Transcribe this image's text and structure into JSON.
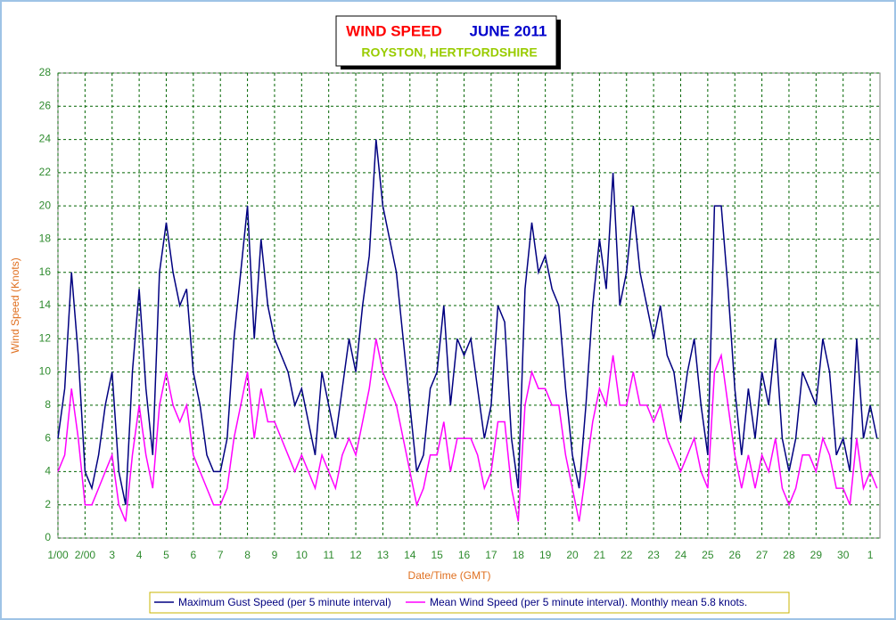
{
  "chart_data": {
    "type": "line",
    "title": "WIND SPEED",
    "title_date": "JUNE 2011",
    "subtitle": "ROYSTON, HERTFORDSHIRE",
    "x_label": "Date/Time (GMT)",
    "y_label": "Wind Speed (Knots)",
    "xlim": [
      1,
      31.36
    ],
    "ylim": [
      0,
      28
    ],
    "xticks": [
      {
        "value": 1,
        "label": "1/00"
      },
      {
        "value": 2,
        "label": "2/00"
      },
      3,
      4,
      5,
      6,
      7,
      8,
      9,
      10,
      11,
      12,
      13,
      14,
      15,
      16,
      17,
      18,
      19,
      20,
      21,
      22,
      23,
      24,
      25,
      26,
      27,
      28,
      29,
      30,
      {
        "value": 31,
        "label": "1"
      }
    ],
    "yticks": [
      0,
      2,
      4,
      6,
      8,
      10,
      12,
      14,
      16,
      18,
      20,
      22,
      24,
      26,
      28
    ],
    "grid": true,
    "x": [
      1,
      1.25,
      1.5,
      1.75,
      2,
      2.25,
      2.5,
      2.75,
      3,
      3.25,
      3.5,
      3.75,
      4,
      4.25,
      4.5,
      4.75,
      5,
      5.25,
      5.5,
      5.75,
      6,
      6.25,
      6.5,
      6.75,
      7,
      7.25,
      7.5,
      7.75,
      8,
      8.25,
      8.5,
      8.75,
      9,
      9.25,
      9.5,
      9.75,
      10,
      10.25,
      10.5,
      10.75,
      11,
      11.25,
      11.5,
      11.75,
      12,
      12.25,
      12.5,
      12.75,
      13,
      13.25,
      13.5,
      13.75,
      14,
      14.25,
      14.5,
      14.75,
      15,
      15.25,
      15.5,
      15.75,
      16,
      16.25,
      16.5,
      16.75,
      17,
      17.25,
      17.5,
      17.75,
      18,
      18.25,
      18.5,
      18.75,
      19,
      19.25,
      19.5,
      19.75,
      20,
      20.25,
      20.5,
      20.75,
      21,
      21.25,
      21.5,
      21.75,
      22,
      22.25,
      22.5,
      22.75,
      23,
      23.25,
      23.5,
      23.75,
      24,
      24.25,
      24.5,
      24.75,
      25,
      25.25,
      25.5,
      25.75,
      26,
      26.25,
      26.5,
      26.75,
      27,
      27.25,
      27.5,
      27.75,
      28,
      28.25,
      28.5,
      28.75,
      29,
      29.25,
      29.5,
      29.75,
      30,
      30.25,
      30.5,
      30.75,
      31,
      31.25
    ],
    "series": [
      {
        "name": "Maximum Gust Speed (per 5 minute interval)",
        "color": "#000080",
        "values": [
          6,
          9,
          16,
          11,
          4,
          3,
          5,
          8,
          10,
          4,
          2,
          10,
          15,
          9,
          5,
          16,
          19,
          16,
          14,
          15,
          10,
          8,
          5,
          4,
          4,
          6,
          12,
          16,
          20,
          12,
          18,
          14,
          12,
          11,
          10,
          8,
          9,
          7,
          5,
          10,
          8,
          6,
          9,
          12,
          10,
          14,
          17,
          24,
          20,
          18,
          16,
          12,
          8,
          4,
          5,
          9,
          10,
          14,
          8,
          12,
          11,
          12,
          9,
          6,
          8,
          14,
          13,
          6,
          3,
          15,
          19,
          16,
          17,
          15,
          14,
          9,
          5,
          3,
          8,
          14,
          18,
          15,
          22,
          14,
          16,
          20,
          16,
          14,
          12,
          14,
          11,
          10,
          7,
          10,
          12,
          8,
          5,
          20,
          20,
          15,
          9,
          5,
          9,
          6,
          10,
          8,
          12,
          6,
          4,
          6,
          10,
          9,
          8,
          12,
          10,
          5,
          6,
          4,
          12,
          6,
          8,
          6
        ]
      },
      {
        "name": "Mean Wind Speed (per 5 minute interval). Monthly mean 5.8 knots.",
        "color": "#ff00ff",
        "values": [
          4,
          5,
          9,
          6,
          2,
          2,
          3,
          4,
          5,
          2,
          1,
          5,
          8,
          5,
          3,
          8,
          10,
          8,
          7,
          8,
          5,
          4,
          3,
          2,
          2,
          3,
          6,
          8,
          10,
          6,
          9,
          7,
          7,
          6,
          5,
          4,
          5,
          4,
          3,
          5,
          4,
          3,
          5,
          6,
          5,
          7,
          9,
          12,
          10,
          9,
          8,
          6,
          4,
          2,
          3,
          5,
          5,
          7,
          4,
          6,
          6,
          6,
          5,
          3,
          4,
          7,
          7,
          3,
          1,
          8,
          10,
          9,
          9,
          8,
          8,
          5,
          3,
          1,
          4,
          7,
          9,
          8,
          11,
          8,
          8,
          10,
          8,
          8,
          7,
          8,
          6,
          5,
          4,
          5,
          6,
          4,
          3,
          10,
          11,
          8,
          5,
          3,
          5,
          3,
          5,
          4,
          6,
          3,
          2,
          3,
          5,
          5,
          4,
          6,
          5,
          3,
          3,
          2,
          6,
          3,
          4,
          3
        ]
      }
    ]
  }
}
